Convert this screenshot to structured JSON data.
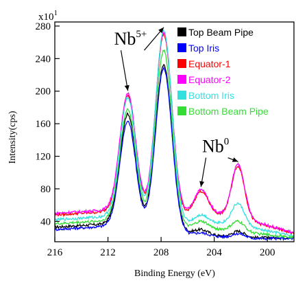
{
  "chart_data": {
    "type": "line",
    "xlabel": "Binding Energy (eV)",
    "ylabel": "Intensity(cps)",
    "xlim": [
      216,
      198
    ],
    "ylim": [
      15,
      285
    ],
    "x_reversed": true,
    "y_multiplier": {
      "base": "x10",
      "exponent": "1"
    },
    "x_ticks": [
      216,
      212,
      208,
      204,
      200
    ],
    "y_ticks": [
      40,
      80,
      120,
      160,
      200,
      240,
      280
    ],
    "legend_position": "top-right",
    "annotations": [
      {
        "base": "Nb",
        "sup": "5+",
        "points_to": [
          210.5,
          207.8
        ],
        "label_at": [
          210.3,
          257
        ]
      },
      {
        "base": "Nb",
        "sup": "0",
        "points_to": [
          205.0,
          202.2
        ],
        "label_at": [
          203.9,
          125
        ]
      }
    ],
    "peak_positions": [
      210.5,
      207.8,
      205.0,
      202.2
    ],
    "series": [
      {
        "name": "Top Beam Pipe",
        "color": "#000000",
        "baseline": {
          "x": [
            216,
            212,
            209,
            206,
            203.5,
            202.5,
            198
          ],
          "y": [
            33,
            37,
            30,
            25,
            22,
            20,
            20
          ]
        },
        "peaks": [
          210.5,
          207.8,
          205.0,
          202.2
        ],
        "heights": [
          172,
          232,
          30,
          28
        ]
      },
      {
        "name": "Top Iris",
        "color": "#0000ff",
        "baseline": {
          "x": [
            216,
            212,
            209,
            206,
            203.5,
            202.5,
            198
          ],
          "y": [
            30,
            34,
            28,
            23,
            21,
            19,
            19
          ]
        },
        "peaks": [
          210.5,
          207.8,
          205.0,
          202.2
        ],
        "heights": [
          163,
          228,
          26,
          25
        ]
      },
      {
        "name": "Equator-1",
        "color": "#ff0000",
        "baseline": {
          "x": [
            216,
            212,
            209,
            206,
            203.5,
            202.5,
            198
          ],
          "y": [
            48,
            52,
            43,
            44,
            48,
            46,
            25
          ]
        },
        "peaks": [
          210.5,
          207.8,
          205.0,
          202.2
        ],
        "heights": [
          195,
          270,
          77,
          108
        ]
      },
      {
        "name": "Equator-2",
        "color": "#ff00ff",
        "baseline": {
          "x": [
            216,
            212,
            209,
            206,
            203.5,
            202.5,
            198
          ],
          "y": [
            50,
            54,
            45,
            46,
            49,
            47,
            26
          ]
        },
        "peaks": [
          210.5,
          207.8,
          205.0,
          202.2
        ],
        "heights": [
          197,
          272,
          79,
          110
        ]
      },
      {
        "name": "Bottom Iris",
        "color": "#33e0e0",
        "baseline": {
          "x": [
            216,
            212,
            209,
            206,
            203.5,
            202.5,
            198
          ],
          "y": [
            42,
            46,
            38,
            36,
            38,
            36,
            22
          ]
        },
        "peaks": [
          210.5,
          207.8,
          205.0,
          202.2
        ],
        "heights": [
          192,
          275,
          48,
          62
        ]
      },
      {
        "name": "Bottom Beam Pipe",
        "color": "#33dd33",
        "baseline": {
          "x": [
            216,
            212,
            209,
            206,
            203.5,
            202.5,
            198
          ],
          "y": [
            37,
            41,
            34,
            30,
            30,
            28,
            20
          ]
        },
        "peaks": [
          210.5,
          207.8,
          205.0,
          202.2
        ],
        "heights": [
          178,
          250,
          40,
          40
        ]
      }
    ]
  }
}
